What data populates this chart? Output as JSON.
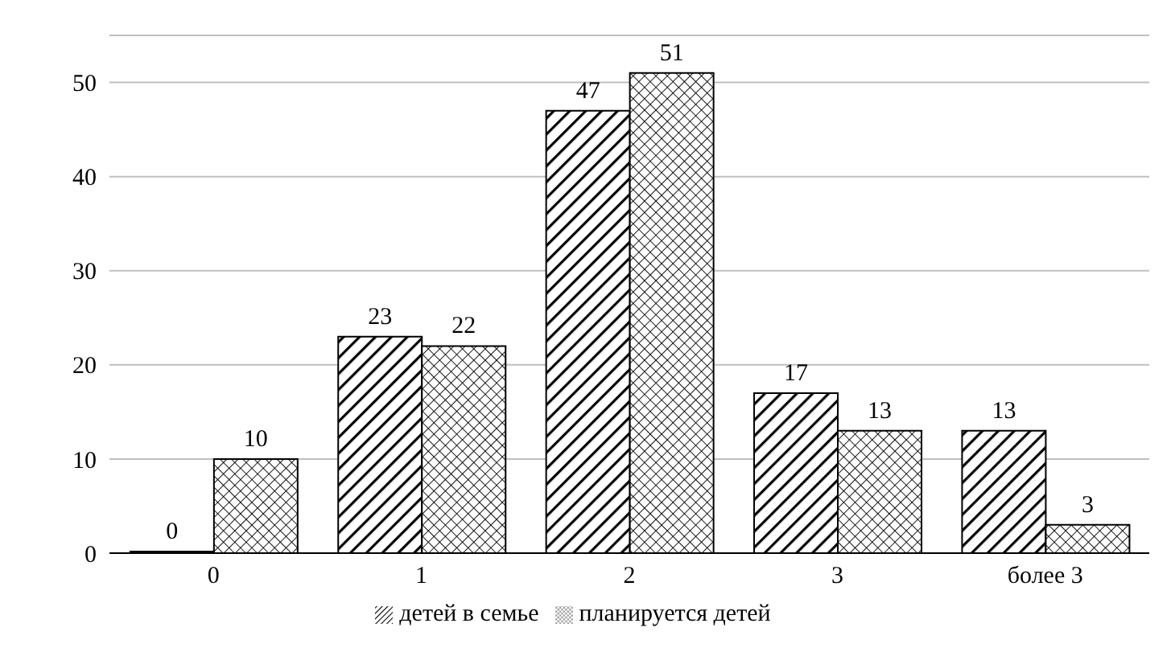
{
  "chart_data": {
    "type": "bar",
    "categories": [
      "0",
      "1",
      "2",
      "3",
      "более 3"
    ],
    "series": [
      {
        "name": "детей в семье",
        "color": "#000000",
        "values": [
          0,
          23,
          47,
          17,
          13
        ]
      },
      {
        "name": "планируется детей",
        "color": "#000000",
        "values": [
          10,
          22,
          51,
          13,
          3
        ]
      }
    ],
    "ylim": [
      0,
      55
    ],
    "yticks": [
      0,
      10,
      20,
      30,
      40,
      50
    ],
    "grid": "y",
    "legend": "bottom",
    "data_labels": true
  }
}
